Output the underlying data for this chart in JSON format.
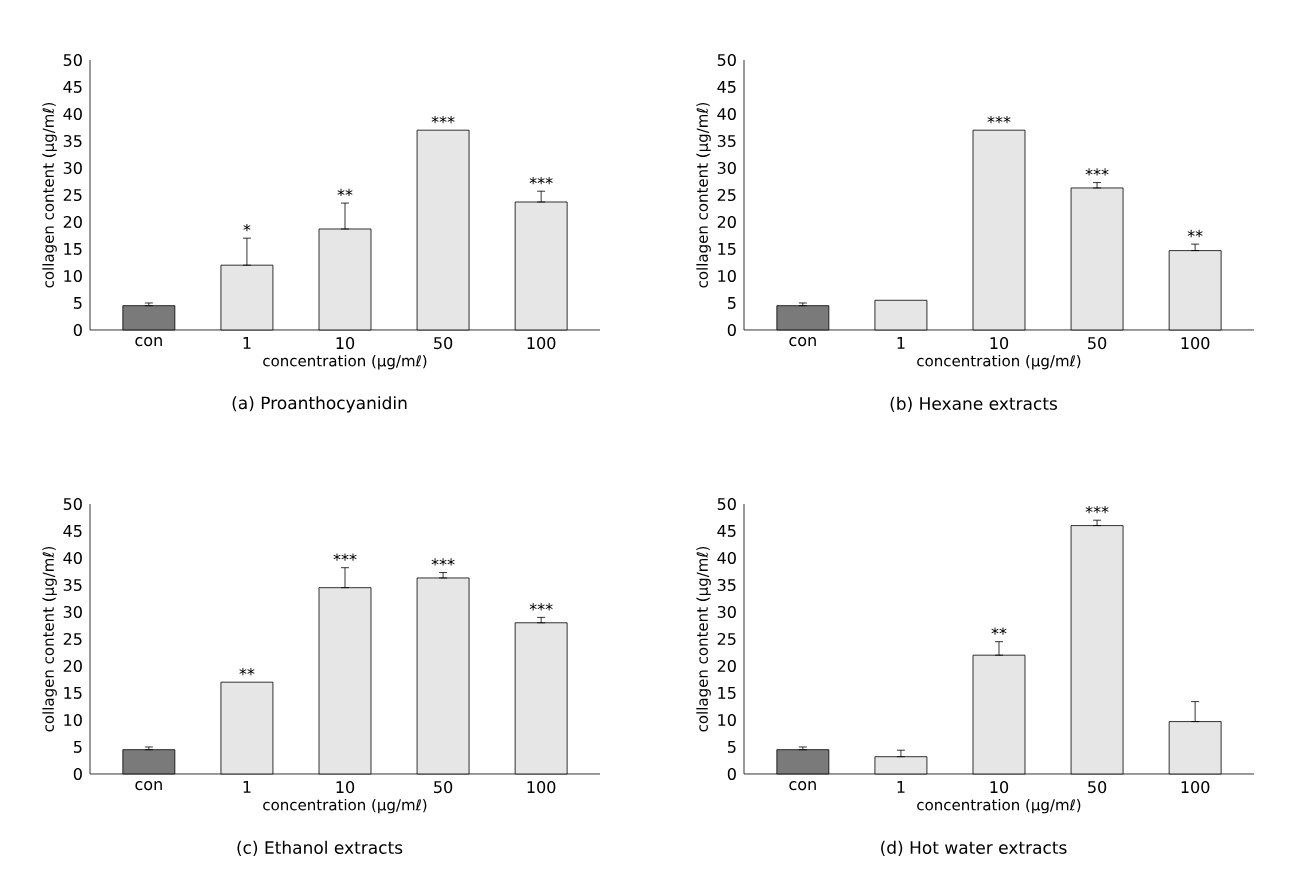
{
  "chart_data": [
    {
      "type": "bar",
      "title": "(a)  Proanthocyanidin",
      "xlabel": "concentration (μg/mℓ)",
      "ylabel": "collagen content (μg/mℓ)",
      "categories": [
        "con",
        "1",
        "10",
        "50",
        "100"
      ],
      "values": [
        4.5,
        12,
        18.7,
        37,
        23.7
      ],
      "errors": [
        [
          4.5,
          5
        ],
        [
          12,
          17
        ],
        [
          18.7,
          23.5
        ],
        null,
        [
          23.7,
          25.7
        ]
      ],
      "colors": [
        "#7a7a7a",
        "#e6e6e6",
        "#e6e6e6",
        "#e6e6e6",
        "#e6e6e6"
      ],
      "ylim": [
        0,
        50
      ],
      "yticks": [
        0,
        5,
        10,
        15,
        20,
        25,
        30,
        35,
        40,
        45,
        50
      ],
      "annotations": [
        {
          "text": "*",
          "x": "1",
          "y": 17
        },
        {
          "text": "**",
          "x": "10",
          "y": 23.5
        },
        {
          "text": "***",
          "x": "50",
          "y": 37
        },
        {
          "text": "***",
          "x": "100",
          "y": 25.7
        }
      ]
    },
    {
      "type": "bar",
      "title": "(b)  Hexane extracts",
      "xlabel": "concentration (μg/mℓ)",
      "ylabel": "collagen content (μg/mℓ)",
      "categories": [
        "con",
        "1",
        "10",
        "50",
        "100"
      ],
      "values": [
        4.5,
        5.5,
        37,
        26.3,
        14.7
      ],
      "errors": [
        [
          4.5,
          5
        ],
        null,
        null,
        [
          26.3,
          27.3
        ],
        [
          14.7,
          15.9
        ]
      ],
      "colors": [
        "#7a7a7a",
        "#e6e6e6",
        "#e6e6e6",
        "#e6e6e6",
        "#e6e6e6"
      ],
      "ylim": [
        0,
        50
      ],
      "yticks": [
        0,
        5,
        10,
        15,
        20,
        25,
        30,
        35,
        40,
        45,
        50
      ],
      "annotations": [
        {
          "text": "***",
          "x": "10",
          "y": 37
        },
        {
          "text": "***",
          "x": "50",
          "y": 27.3
        },
        {
          "text": "**",
          "x": "100",
          "y": 15.9
        }
      ]
    },
    {
      "type": "bar",
      "title": "(c)  Ethanol extracts",
      "xlabel": "concentration (μg/mℓ)",
      "ylabel": "collagen content (μg/mℓ)",
      "categories": [
        "con",
        "1",
        "10",
        "50",
        "100"
      ],
      "values": [
        4.5,
        17,
        34.5,
        36.3,
        28
      ],
      "errors": [
        [
          4.5,
          5
        ],
        null,
        [
          34.5,
          38.2
        ],
        [
          36.3,
          37.3
        ],
        [
          28,
          29
        ]
      ],
      "colors": [
        "#7a7a7a",
        "#e6e6e6",
        "#e6e6e6",
        "#e6e6e6",
        "#e6e6e6"
      ],
      "ylim": [
        0,
        50
      ],
      "yticks": [
        0,
        5,
        10,
        15,
        20,
        25,
        30,
        35,
        40,
        45,
        50
      ],
      "annotations": [
        {
          "text": "**",
          "x": "1",
          "y": 17
        },
        {
          "text": "***",
          "x": "10",
          "y": 38.2
        },
        {
          "text": "***",
          "x": "50",
          "y": 37.3
        },
        {
          "text": "***",
          "x": "100",
          "y": 29
        }
      ]
    },
    {
      "type": "bar",
      "title": "(d)  Hot water extracts",
      "xlabel": "concentration (μg/mℓ)",
      "ylabel": "collagen content (μg/mℓ)",
      "categories": [
        "con",
        "1",
        "10",
        "50",
        "100"
      ],
      "values": [
        4.5,
        3.2,
        22,
        46,
        9.7
      ],
      "errors": [
        [
          4.5,
          5
        ],
        [
          3.2,
          4.4
        ],
        [
          22,
          24.5
        ],
        [
          46,
          47
        ],
        [
          9.7,
          13.4
        ]
      ],
      "colors": [
        "#7a7a7a",
        "#e6e6e6",
        "#e6e6e6",
        "#e6e6e6",
        "#e6e6e6"
      ],
      "ylim": [
        0,
        50
      ],
      "yticks": [
        0,
        5,
        10,
        15,
        20,
        25,
        30,
        35,
        40,
        45,
        50
      ],
      "annotations": [
        {
          "text": "**",
          "x": "10",
          "y": 24.5
        },
        {
          "text": "***",
          "x": "50",
          "y": 47
        }
      ]
    }
  ]
}
